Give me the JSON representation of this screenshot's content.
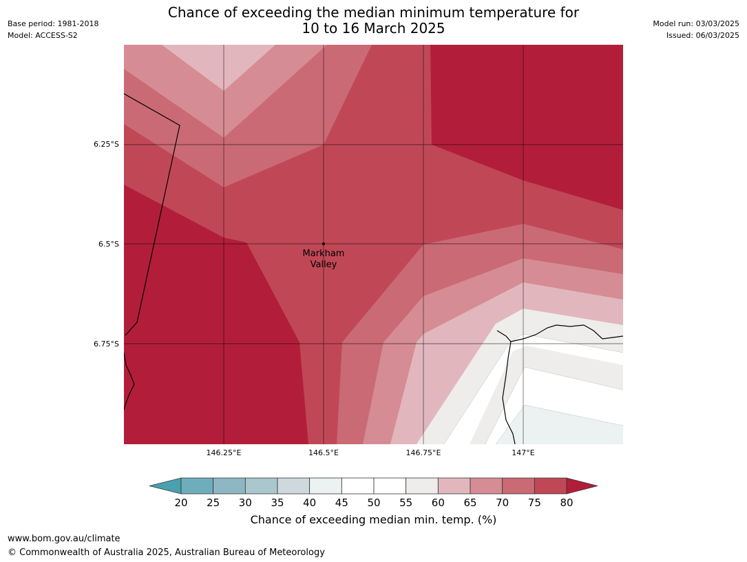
{
  "header": {
    "base_period": "Base period: 1981-2018",
    "model": "Model: ACCESS-S2",
    "title_line1": "Chance of exceeding the median minimum temperature for",
    "title_line2": "10 to 16 March 2025",
    "model_run": "Model run: 03/03/2025",
    "issued": "Issued: 06/03/2025"
  },
  "map": {
    "lat_labels": [
      "6.25°S",
      "6.5°S",
      "6.75°S"
    ],
    "lon_labels": [
      "146.25°E",
      "146.5°E",
      "146.75°E",
      "147°E"
    ],
    "place": {
      "line1": "Markham",
      "line2": "Valley"
    }
  },
  "colorbar": {
    "ticks": [
      "20",
      "25",
      "30",
      "35",
      "40",
      "45",
      "50",
      "55",
      "60",
      "65",
      "70",
      "75",
      "80"
    ],
    "colors": [
      "#4aa0b0",
      "#6eadbc",
      "#8cb7c3",
      "#a9c7cc",
      "#cfd8dc",
      "#ecf1f2",
      "#ffffff",
      "#ffffff",
      "#eeedeb",
      "#e1b7bd",
      "#d68c94",
      "#ca6a74",
      "#c04856",
      "#b21e3a"
    ],
    "title": "Chance of exceeding median min. temp. (%)"
  },
  "footer": {
    "url": "www.bom.gov.au/climate",
    "copyright": "© Commonwealth of Australia 2025, Australian Bureau of Meteorology"
  }
}
